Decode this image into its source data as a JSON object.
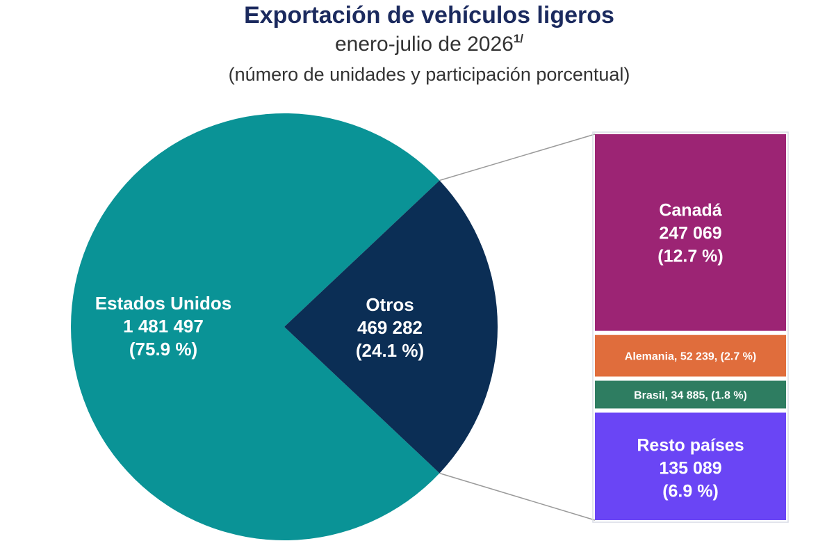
{
  "title": "Exportación de vehículos ligeros",
  "subtitle": "enero-julio de 2026",
  "subtitle_note": "1/",
  "subtitle2": "(número de unidades y participación porcentual)",
  "colors": {
    "estados_unidos": "#0a9396",
    "otros": "#0b2e55",
    "canada": "#9c2474",
    "alemania": "#e06d3c",
    "brasil": "#2e7d61",
    "resto": "#6a45f5",
    "connector": "#9a9a9a"
  },
  "chart_data": {
    "type": "bar-of-pie",
    "pie": [
      {
        "name": "Estados Unidos",
        "value_label": "1 481 497",
        "pct_label": "(75.9 %)",
        "value": 1481497,
        "percent": 75.9
      },
      {
        "name": "Otros",
        "value_label": "469 282",
        "pct_label": "(24.1 %)",
        "value": 469282,
        "percent": 24.1
      }
    ],
    "bar": [
      {
        "name": "Canadá",
        "value_label": "247 069",
        "pct_label": "(12.7 %)",
        "value": 247069,
        "percent": 12.7
      },
      {
        "name": "Alemania",
        "inline_label": "Alemania, 52 239, (2.7 %)",
        "value": 52239,
        "percent": 2.7
      },
      {
        "name": "Brasil",
        "inline_label": "Brasil,  34 885, (1.8 %)",
        "value": 34885,
        "percent": 1.8
      },
      {
        "name": "Resto países",
        "value_label": "135 089",
        "pct_label": "(6.9 %)",
        "value": 135089,
        "percent": 6.9
      }
    ]
  }
}
